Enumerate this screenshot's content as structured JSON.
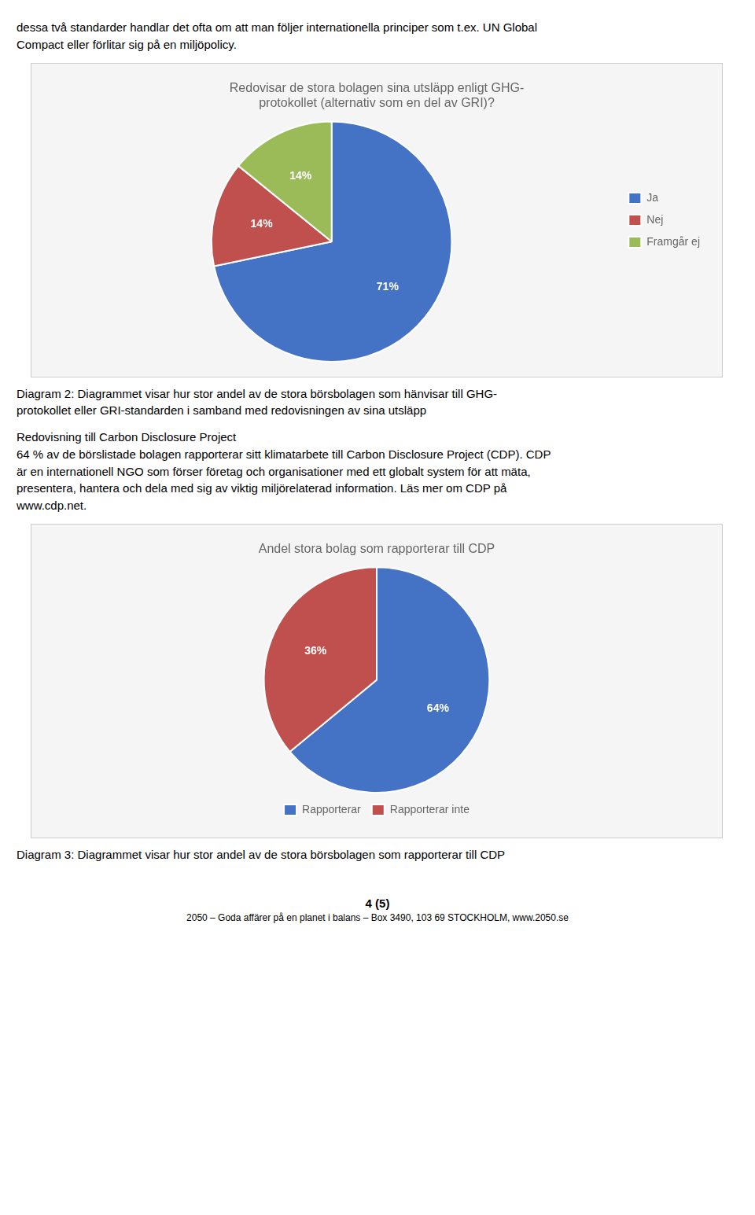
{
  "chart_data": [
    {
      "type": "pie",
      "title": [
        "Redovisar de stora bolagen sina utsläpp enligt GHG-",
        "protokollet (alternativ som en del av GRI)?"
      ],
      "categories": [
        "Ja",
        "Nej",
        "Framgår ej"
      ],
      "values": [
        71,
        14,
        14
      ],
      "value_labels": [
        "71%",
        "14%",
        "14%"
      ],
      "colors": [
        "#4472C4",
        "#C0504D",
        "#9BBB59"
      ],
      "legend": "right",
      "data_labels": true,
      "text_above": [
        "dessa två standarder handlar det ofta om att man följer internationella principer som t.ex. UN Global",
        "Compact eller förlitar sig på en miljöpolicy."
      ],
      "text_below": [
        "Diagram 2: Diagrammet visar hur stor andel av de stora börsbolagen som hänvisar till GHG-",
        "protokollet eller GRI-standarden i samband med redovisningen av sina utsläpp"
      ]
    },
    {
      "type": "pie",
      "title": "Andel stora bolag som rapporterar till CDP",
      "categories": [
        "Rapporterar",
        "Rapporterar inte"
      ],
      "values": [
        64,
        36
      ],
      "value_labels": [
        "64%",
        "36%"
      ],
      "colors": [
        "#4472C4",
        "#C0504D"
      ],
      "legend": "bottom",
      "data_labels": true,
      "text_above": [
        "Redovisning till Carbon Disclosure Project",
        "64 % av de börslistade bolagen rapporterar sitt klimatarbete till Carbon Disclosure Project (CDP). CDP",
        "är en internationell NGO som förser företag och organisationer med ett globalt system för att mäta,",
        "presentera, hantera och dela med sig av viktig miljörelaterad information. Läs mer om CDP på",
        "www.cdp.net."
      ],
      "text_below": [
        "Diagram 3: Diagrammet visar hur stor andel av de stora börsbolagen som rapporterar till CDP"
      ]
    }
  ],
  "footer": [
    "4 (5)",
    "2050 – Goda affärer på en planet i balans – Box 3490, 103 69 STOCKHOLM, www.2050.se"
  ]
}
